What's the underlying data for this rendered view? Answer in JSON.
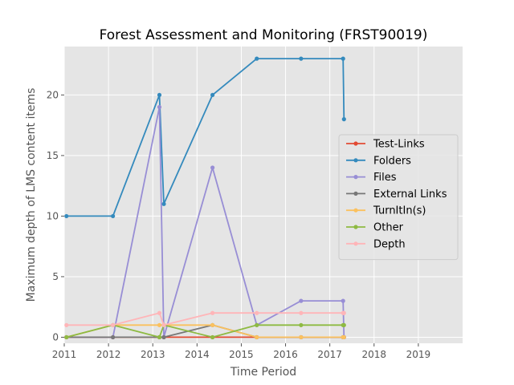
{
  "chart_data": {
    "type": "line",
    "title": "Forest Assessment and Monitoring (FRST90019)",
    "xlabel": "Time Period",
    "ylabel": "Maximum depth of LMS content items",
    "xlim": [
      2011,
      2020
    ],
    "ylim": [
      -0.5,
      24
    ],
    "xticks": [
      2011,
      2012,
      2013,
      2014,
      2015,
      2016,
      2017,
      2018,
      2019
    ],
    "xtick_labels": [
      "2011",
      "2012",
      "2013",
      "2014",
      "2015",
      "2016",
      "2017",
      "2018",
      "2019"
    ],
    "yticks": [
      0,
      5,
      10,
      15,
      20
    ],
    "ytick_labels": [
      "0",
      "5",
      "10",
      "15",
      "20"
    ],
    "grid": true,
    "legend_position": "center-right",
    "x": [
      2011.05,
      2012.1,
      2013.15,
      2013.25,
      2014.35,
      2015.35,
      2016.35,
      2017.3,
      2017.32
    ],
    "series": [
      {
        "name": "Test-Links",
        "color": "#e24a33",
        "values": [
          0,
          0,
          0,
          0,
          0,
          0,
          0,
          0,
          0
        ]
      },
      {
        "name": "Folders",
        "color": "#348abd",
        "values": [
          10,
          10,
          20,
          11,
          20,
          23,
          23,
          23,
          18
        ]
      },
      {
        "name": "Files",
        "color": "#988ed5",
        "values": [
          0,
          0,
          19,
          0,
          14,
          1,
          3,
          3,
          0
        ]
      },
      {
        "name": "External Links",
        "color": "#777777",
        "values": [
          0,
          0,
          0,
          0,
          1,
          0,
          0,
          0,
          0
        ]
      },
      {
        "name": "TurnItIn(s)",
        "color": "#fbc15e",
        "values": [
          0,
          1,
          1,
          1,
          1,
          0,
          0,
          0,
          0
        ]
      },
      {
        "name": "Other",
        "color": "#8eba42",
        "values": [
          0,
          1,
          0,
          1,
          0,
          1,
          1,
          1,
          1
        ]
      },
      {
        "name": "Depth",
        "color": "#ffb5b8",
        "values": [
          1,
          1,
          2,
          1,
          2,
          2,
          2,
          2,
          2
        ]
      }
    ]
  }
}
